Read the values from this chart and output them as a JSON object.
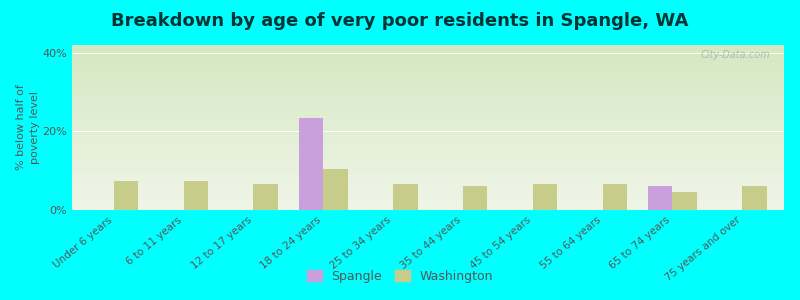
{
  "title": "Breakdown by age of very poor residents in Spangle, WA",
  "ylabel": "% below half of\npoverty level",
  "categories": [
    "Under 6 years",
    "6 to 11 years",
    "12 to 17 years",
    "18 to 24 years",
    "25 to 34 years",
    "35 to 44 years",
    "45 to 54 years",
    "55 to 64 years",
    "65 to 74 years",
    "75 years and over"
  ],
  "spangle_values": [
    0,
    0,
    0,
    23.5,
    0,
    0,
    0,
    0,
    6.0,
    0
  ],
  "washington_values": [
    7.5,
    7.5,
    6.5,
    10.5,
    6.5,
    6.0,
    6.5,
    6.5,
    4.5,
    6.0
  ],
  "spangle_color": "#c9a0dc",
  "washington_color": "#c8cc8a",
  "background_color": "#00ffff",
  "plot_bg_top": "#d4e8c2",
  "plot_bg_bottom": "#f0f5e8",
  "ylim": [
    0,
    42
  ],
  "yticks": [
    0,
    20,
    40
  ],
  "ytick_labels": [
    "0%",
    "20%",
    "40%"
  ],
  "bar_width": 0.35,
  "title_fontsize": 13,
  "axis_label_fontsize": 8,
  "tick_fontsize": 8,
  "watermark": "City-Data.com",
  "title_color": "#003333"
}
